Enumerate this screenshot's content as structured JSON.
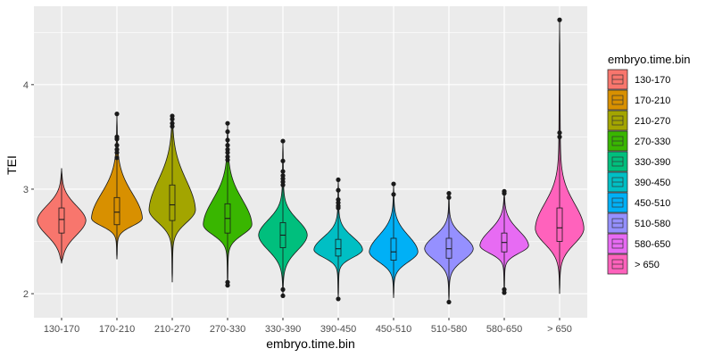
{
  "chart_data": {
    "type": "violin",
    "title": "",
    "xlabel": "embryo.time.bin",
    "ylabel": "TEI",
    "ylim": [
      1.77,
      4.75
    ],
    "yticks": [
      2,
      3,
      4
    ],
    "grid": true,
    "legend_title": "embryo.time.bin",
    "legend_position": "right",
    "categories": [
      "130-170",
      "170-210",
      "210-270",
      "270-330",
      "330-390",
      "390-450",
      "450-510",
      "510-580",
      "580-650",
      "> 650"
    ],
    "colors": [
      "#F8766D",
      "#D89000",
      "#A3A500",
      "#39B600",
      "#00BF7D",
      "#00BFC4",
      "#00B0F6",
      "#9590FF",
      "#E76BF3",
      "#FF62BC"
    ],
    "violins": [
      {
        "category": "130-170",
        "min": 2.29,
        "max": 3.2,
        "q1": 2.58,
        "median": 2.71,
        "q3": 2.82,
        "mode": 2.7,
        "half_width": 0.44,
        "outliers": []
      },
      {
        "category": "170-210",
        "min": 2.33,
        "max": 3.72,
        "q1": 2.66,
        "median": 2.78,
        "q3": 2.92,
        "mode": 2.72,
        "half_width": 0.46,
        "outliers": [
          3.72,
          3.5,
          3.48,
          3.42,
          3.38,
          3.35,
          3.3
        ]
      },
      {
        "category": "210-270",
        "min": 2.11,
        "max": 3.7,
        "q1": 2.7,
        "median": 2.85,
        "q3": 3.04,
        "mode": 2.8,
        "half_width": 0.42,
        "outliers": [
          3.7,
          3.67,
          3.63,
          3.6
        ]
      },
      {
        "category": "270-330",
        "min": 2.08,
        "max": 3.63,
        "q1": 2.58,
        "median": 2.72,
        "q3": 2.86,
        "mode": 2.66,
        "half_width": 0.44,
        "outliers": [
          3.63,
          3.55,
          3.47,
          3.42,
          3.38,
          3.35,
          3.31,
          3.28,
          2.11,
          2.08
        ]
      },
      {
        "category": "330-390",
        "min": 1.98,
        "max": 3.46,
        "q1": 2.44,
        "median": 2.56,
        "q3": 2.68,
        "mode": 2.56,
        "half_width": 0.44,
        "outliers": [
          3.46,
          3.27,
          3.17,
          3.13,
          3.1,
          3.07,
          3.04,
          2.04,
          1.98
        ]
      },
      {
        "category": "390-450",
        "min": 1.95,
        "max": 3.09,
        "q1": 2.36,
        "median": 2.43,
        "q3": 2.52,
        "mode": 2.42,
        "half_width": 0.44,
        "outliers": [
          3.09,
          2.99,
          2.9,
          2.87,
          2.84,
          2.82,
          1.95
        ]
      },
      {
        "category": "450-510",
        "min": 1.96,
        "max": 3.05,
        "q1": 2.32,
        "median": 2.4,
        "q3": 2.53,
        "mode": 2.4,
        "half_width": 0.44,
        "outliers": [
          3.05,
          2.95
        ]
      },
      {
        "category": "510-580",
        "min": 1.92,
        "max": 2.96,
        "q1": 2.34,
        "median": 2.43,
        "q3": 2.53,
        "mode": 2.43,
        "half_width": 0.44,
        "outliers": [
          2.96,
          2.92,
          1.92
        ]
      },
      {
        "category": "580-650",
        "min": 2.01,
        "max": 2.98,
        "q1": 2.4,
        "median": 2.49,
        "q3": 2.58,
        "mode": 2.46,
        "half_width": 0.44,
        "outliers": [
          2.98,
          2.96,
          2.04,
          2.01
        ]
      },
      {
        "category": "> 650",
        "min": 2.0,
        "max": 4.62,
        "q1": 2.5,
        "median": 2.63,
        "q3": 2.82,
        "mode": 2.62,
        "half_width": 0.44,
        "outliers": [
          4.62,
          3.54,
          3.5
        ]
      }
    ]
  }
}
